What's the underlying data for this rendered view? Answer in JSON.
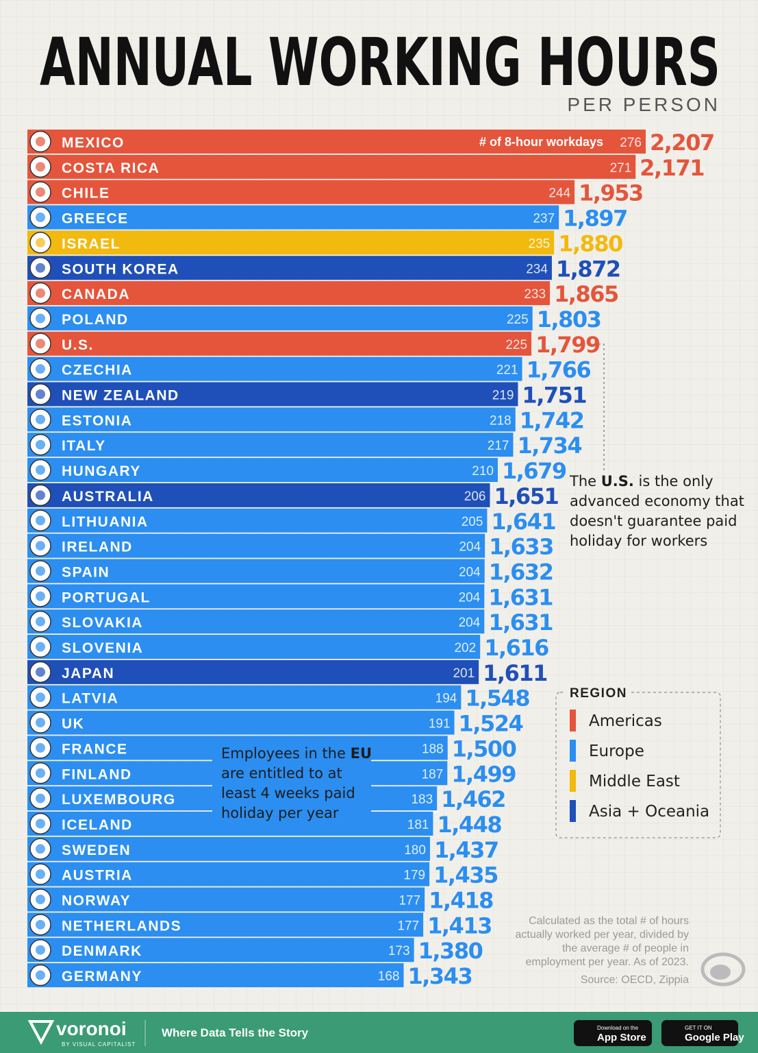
{
  "chart_data": {
    "type": "bar",
    "title": "ANNUAL WORKING HOURS",
    "subtitle": "PER PERSON",
    "categories": [
      "MEXICO",
      "COSTA RICA",
      "CHILE",
      "GREECE",
      "ISRAEL",
      "SOUTH KOREA",
      "CANADA",
      "POLAND",
      "U.S.",
      "CZECHIA",
      "NEW ZEALAND",
      "ESTONIA",
      "ITALY",
      "HUNGARY",
      "AUSTRALIA",
      "LITHUANIA",
      "IRELAND",
      "SPAIN",
      "PORTUGAL",
      "SLOVAKIA",
      "SLOVENIA",
      "JAPAN",
      "LATVIA",
      "UK",
      "FRANCE",
      "FINLAND",
      "LUXEMBOURG",
      "ICELAND",
      "SWEDEN",
      "AUSTRIA",
      "NORWAY",
      "NETHERLANDS",
      "DENMARK",
      "GERMANY"
    ],
    "values": [
      2207,
      2171,
      1953,
      1897,
      1880,
      1872,
      1865,
      1803,
      1799,
      1766,
      1751,
      1742,
      1734,
      1679,
      1651,
      1641,
      1633,
      1632,
      1631,
      1631,
      1616,
      1611,
      1548,
      1524,
      1500,
      1499,
      1462,
      1448,
      1437,
      1435,
      1418,
      1413,
      1380,
      1343
    ],
    "value_labels": [
      "2,207",
      "2,171",
      "1,953",
      "1,897",
      "1,880",
      "1,872",
      "1,865",
      "1,803",
      "1,799",
      "1,766",
      "1,751",
      "1,742",
      "1,734",
      "1,679",
      "1,651",
      "1,641",
      "1,633",
      "1,632",
      "1,631",
      "1,631",
      "1,616",
      "1,611",
      "1,548",
      "1,524",
      "1,500",
      "1,499",
      "1,462",
      "1,448",
      "1,437",
      "1,435",
      "1,418",
      "1,413",
      "1,380",
      "1,343"
    ],
    "workdays_label": "# of 8-hour workdays",
    "workdays": [
      276,
      271,
      244,
      237,
      235,
      234,
      233,
      225,
      225,
      221,
      219,
      218,
      217,
      210,
      206,
      205,
      204,
      204,
      204,
      204,
      202,
      201,
      194,
      191,
      188,
      187,
      183,
      181,
      180,
      179,
      177,
      177,
      173,
      168
    ],
    "bar_regions": [
      "Americas",
      "Americas",
      "Americas",
      "Europe",
      "Middle East",
      "Asia + Oceania",
      "Americas",
      "Europe",
      "Americas",
      "Europe",
      "Asia + Oceania",
      "Europe",
      "Europe",
      "Europe",
      "Asia + Oceania",
      "Europe",
      "Europe",
      "Europe",
      "Europe",
      "Europe",
      "Europe",
      "Asia + Oceania",
      "Europe",
      "Europe",
      "Europe",
      "Europe",
      "Europe",
      "Europe",
      "Europe",
      "Europe",
      "Europe",
      "Europe",
      "Europe",
      "Europe"
    ],
    "legend": {
      "title": "REGION",
      "items": [
        {
          "name": "Americas",
          "color": "#e4553c"
        },
        {
          "name": "Europe",
          "color": "#2b8ef0"
        },
        {
          "name": "Middle East",
          "color": "#f2b90e"
        },
        {
          "name": "Asia + Oceania",
          "color": "#1f4fb8"
        }
      ]
    },
    "annotations": {
      "us_note": [
        "The ",
        "U.S.",
        " is the only advanced economy that doesn't guarantee paid holiday for workers"
      ],
      "eu_note": [
        "Employees in the ",
        "EU",
        " are entitled to at least 4 weeks paid holiday per year"
      ],
      "method_note": "Calculated as the total # of hours actually worked per year, divided by the average # of people in employment per year. As of 2023.",
      "source": "Source: OECD, Zippia"
    },
    "footer": {
      "brand": "voronoi",
      "brand_sub": "BY VISUAL CAPITALIST",
      "tagline": "Where Data Tells the Story",
      "app_store_small": "Download on the",
      "app_store": "App Store",
      "google_small": "GET IT ON",
      "google": "Google Play"
    }
  }
}
